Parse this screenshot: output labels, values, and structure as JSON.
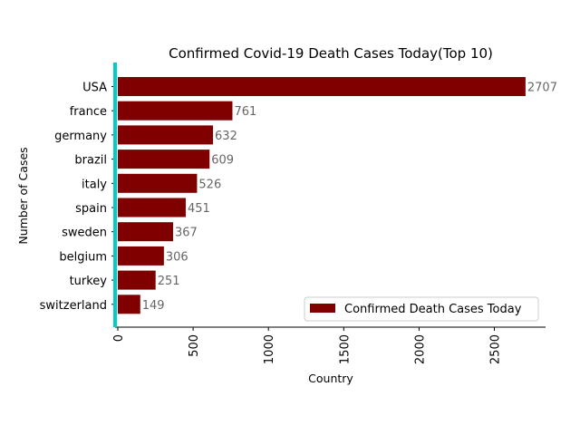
{
  "chart_data": {
    "type": "bar",
    "orientation": "horizontal",
    "title": "Confirmed Covid-19 Death Cases Today(Top 10)",
    "xlabel": "Country",
    "ylabel": "Number of Cases",
    "categories": [
      "USA",
      "france",
      "germany",
      "brazil",
      "italy",
      "spain",
      "sweden",
      "belgium",
      "turkey",
      "switzerland"
    ],
    "series": [
      {
        "name": "Confirmed Death Cases Today",
        "values": [
          2707,
          761,
          632,
          609,
          526,
          451,
          367,
          306,
          251,
          149
        ]
      }
    ],
    "xlim": [
      0,
      2840
    ],
    "xticks": [
      0,
      500,
      1000,
      1500,
      2000,
      2500
    ],
    "grid": false,
    "legend": "bottom-right",
    "colors": {
      "bar": "#800000",
      "data_label": "#666666",
      "left_spine": "#00cccc",
      "axis": "#000000"
    }
  }
}
